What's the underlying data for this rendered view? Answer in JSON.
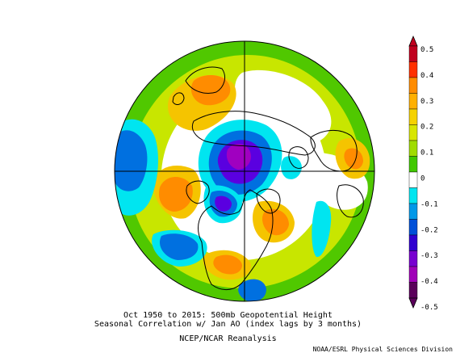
{
  "figure": {
    "caption_line1": "Oct 1950 to 2015: 500mb Geopotential Height",
    "caption_line2": "Seasonal Correlation w/ Jan AO (index lags by 3 months)",
    "caption_line3": "NCEP/NCAR Reanalysis",
    "credit": "NOAA/ESRL Physical Sciences Division"
  },
  "colorbar": {
    "ticks": [
      {
        "label": "0.5",
        "color": "#b3001b"
      },
      {
        "label": "0.4",
        "color": "#ff8000"
      },
      {
        "label": "0.3",
        "color": "#f5c400"
      },
      {
        "label": "0.2",
        "color": "#c8e600"
      },
      {
        "label": "0.1",
        "color": "#50c800"
      },
      {
        "label": "0",
        "color": "#ffffff"
      },
      {
        "label": "-0.1",
        "color": "#00e5f0"
      },
      {
        "label": "-0.2",
        "color": "#0070e0"
      },
      {
        "label": "-0.3",
        "color": "#5a00e0"
      },
      {
        "label": "-0.4",
        "color": "#a000c0"
      },
      {
        "label": "-0.5",
        "color": "#5a005a"
      }
    ],
    "segments": [
      "#c0001e",
      "#ff3000",
      "#ff8c00",
      "#ffb000",
      "#f5d200",
      "#d8e600",
      "#a0dc00",
      "#40c800",
      "#ffffff",
      "#00e5f0",
      "#0098e8",
      "#0050d8",
      "#3000d0",
      "#7800d0",
      "#a000b8",
      "#5a005a"
    ]
  },
  "map": {
    "projection": "north polar stereographic",
    "colors": {
      "pos1": "#50c800",
      "pos2": "#c8e600",
      "pos3": "#f5c400",
      "pos4": "#ff8c00",
      "pos5": "#ff3000",
      "neg1": "#00e5f0",
      "neg2": "#0070e0",
      "neg3": "#5a00e0",
      "neg4": "#a000c0",
      "neg5": "#5a005a"
    }
  }
}
